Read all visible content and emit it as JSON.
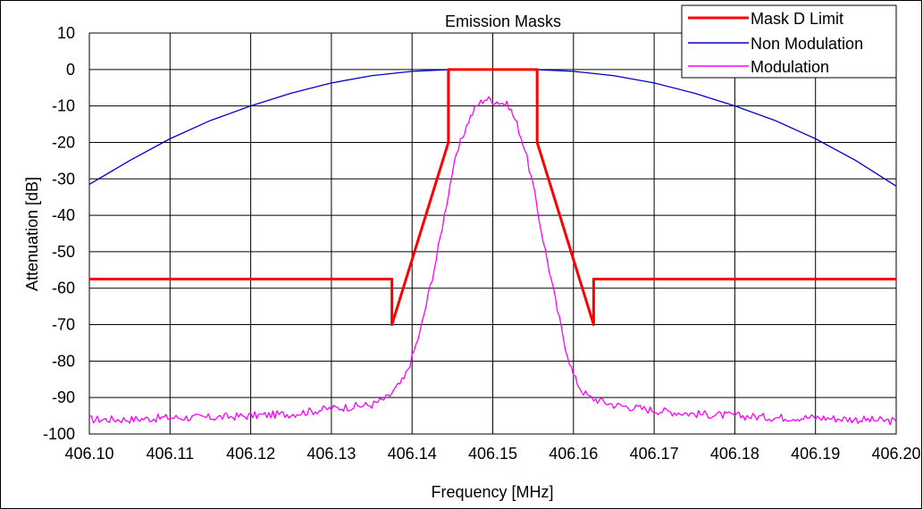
{
  "chart_data": {
    "type": "line",
    "title": "Emission Masks",
    "xlabel": "Frequency [MHz]",
    "ylabel": "Attenuation [dB]",
    "xlim": [
      406.1,
      406.2
    ],
    "ylim": [
      -100,
      10
    ],
    "x_ticks": [
      "406.10",
      "406.11",
      "406.12",
      "406.13",
      "406.14",
      "406.15",
      "406.16",
      "406.17",
      "406.18",
      "406.19",
      "406.20"
    ],
    "y_ticks": [
      "10",
      "0",
      "-10",
      "-20",
      "-30",
      "-40",
      "-50",
      "-60",
      "-70",
      "-80",
      "-90",
      "-100"
    ],
    "grid": true,
    "legend_position": "top-right",
    "series": [
      {
        "name": "Mask D Limit",
        "color": "#ff0000",
        "points": [
          [
            406.1,
            -57.5
          ],
          [
            406.1375,
            -57.5
          ],
          [
            406.1375,
            -70.0
          ],
          [
            406.1445,
            -20.0
          ],
          [
            406.1445,
            0.0
          ],
          [
            406.1555,
            0.0
          ],
          [
            406.1555,
            -20.0
          ],
          [
            406.1625,
            -70.0
          ],
          [
            406.1625,
            -57.5
          ],
          [
            406.2,
            -57.5
          ]
        ]
      },
      {
        "name": "Non Modulation",
        "color": "#0000cc",
        "points": [
          [
            406.1,
            -31.5
          ],
          [
            406.105,
            -25.0
          ],
          [
            406.11,
            -19.0
          ],
          [
            406.115,
            -14.0
          ],
          [
            406.12,
            -10.0
          ],
          [
            406.125,
            -6.5
          ],
          [
            406.13,
            -3.7
          ],
          [
            406.135,
            -1.7
          ],
          [
            406.14,
            -0.5
          ],
          [
            406.145,
            0.0
          ],
          [
            406.15,
            0.0
          ],
          [
            406.155,
            0.0
          ],
          [
            406.16,
            -0.5
          ],
          [
            406.165,
            -1.7
          ],
          [
            406.17,
            -3.7
          ],
          [
            406.175,
            -6.5
          ],
          [
            406.18,
            -10.0
          ],
          [
            406.185,
            -14.0
          ],
          [
            406.19,
            -19.0
          ],
          [
            406.195,
            -25.0
          ],
          [
            406.2,
            -32.0
          ]
        ]
      },
      {
        "name": "Modulation",
        "color": "#ff00ff",
        "points": [
          [
            406.1,
            -96.0
          ],
          [
            406.105,
            -96.0
          ],
          [
            406.11,
            -95.5
          ],
          [
            406.115,
            -95.5
          ],
          [
            406.12,
            -95.0
          ],
          [
            406.125,
            -94.5
          ],
          [
            406.13,
            -93.0
          ],
          [
            406.135,
            -92.0
          ],
          [
            406.137,
            -90.0
          ],
          [
            406.139,
            -85.0
          ],
          [
            406.14,
            -79.0
          ],
          [
            406.141,
            -72.0
          ],
          [
            406.142,
            -62.0
          ],
          [
            406.143,
            -52.0
          ],
          [
            406.144,
            -40.0
          ],
          [
            406.145,
            -28.0
          ],
          [
            406.146,
            -20.0
          ],
          [
            406.147,
            -14.0
          ],
          [
            406.148,
            -10.0
          ],
          [
            406.149,
            -8.0
          ],
          [
            406.15,
            -8.5
          ],
          [
            406.151,
            -9.0
          ],
          [
            406.152,
            -10.0
          ],
          [
            406.153,
            -15.0
          ],
          [
            406.154,
            -22.0
          ],
          [
            406.155,
            -32.0
          ],
          [
            406.156,
            -44.0
          ],
          [
            406.157,
            -55.0
          ],
          [
            406.158,
            -66.0
          ],
          [
            406.159,
            -76.0
          ],
          [
            406.16,
            -84.0
          ],
          [
            406.161,
            -88.0
          ],
          [
            406.162,
            -90.0
          ],
          [
            406.165,
            -92.0
          ],
          [
            406.17,
            -93.5
          ],
          [
            406.175,
            -94.5
          ],
          [
            406.18,
            -95.0
          ],
          [
            406.185,
            -95.5
          ],
          [
            406.19,
            -95.5
          ],
          [
            406.195,
            -96.0
          ],
          [
            406.2,
            -96.5
          ]
        ]
      }
    ]
  }
}
